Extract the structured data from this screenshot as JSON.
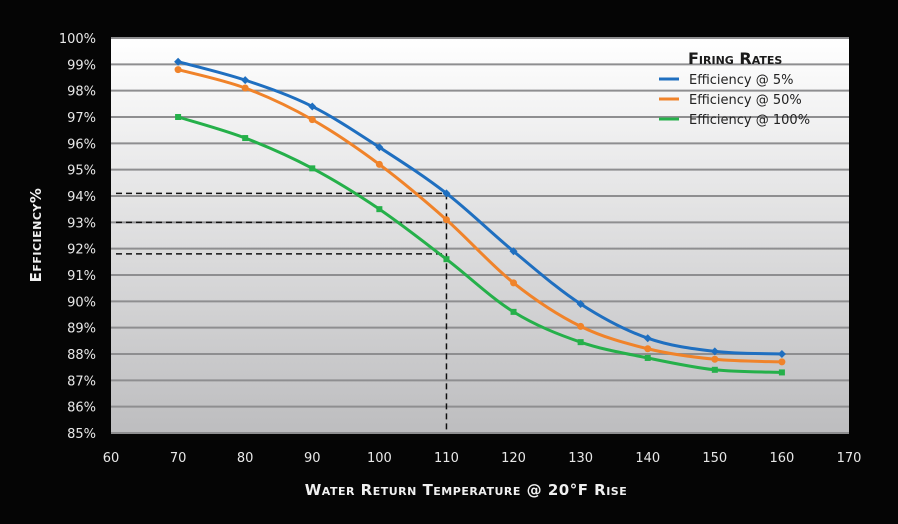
{
  "chart_data": {
    "type": "line",
    "title": "",
    "xlabel": "Water Return Temperature @ 20°F Rise",
    "ylabel": "Efficiency%",
    "xlim": [
      60,
      170
    ],
    "ylim": [
      85,
      100
    ],
    "x_ticks": [
      "60",
      "70",
      "80",
      "90",
      "100",
      "110",
      "120",
      "130",
      "140",
      "150",
      "160",
      "170"
    ],
    "y_ticks": [
      "85%",
      "86%",
      "87%",
      "88%",
      "89%",
      "90%",
      "91%",
      "92%",
      "93%",
      "94%",
      "95%",
      "96%",
      "97%",
      "98%",
      "99%",
      "100%"
    ],
    "grid": true,
    "legend": {
      "title": "Firing Rates",
      "placement": "top-right"
    },
    "x": [
      70,
      80,
      90,
      100,
      110,
      120,
      130,
      140,
      150,
      160
    ],
    "series": [
      {
        "name": "Efficiency @ 5%",
        "color": "#1f6fc0",
        "values": [
          99.1,
          98.4,
          97.4,
          95.85,
          94.1,
          91.9,
          89.9,
          88.6,
          88.1,
          88.0
        ]
      },
      {
        "name": "Efficiency @ 50%",
        "color": "#f0832a",
        "values": [
          98.8,
          98.1,
          96.9,
          95.2,
          93.1,
          90.7,
          89.05,
          88.2,
          87.8,
          87.7
        ]
      },
      {
        "name": "Efficiency @ 100%",
        "color": "#25b04a",
        "values": [
          97.0,
          96.2,
          95.05,
          93.5,
          91.6,
          89.6,
          88.45,
          87.85,
          87.4,
          87.3
        ]
      }
    ],
    "reference_lines": {
      "x": 110,
      "y": [
        94.1,
        93.0,
        91.8
      ]
    }
  }
}
